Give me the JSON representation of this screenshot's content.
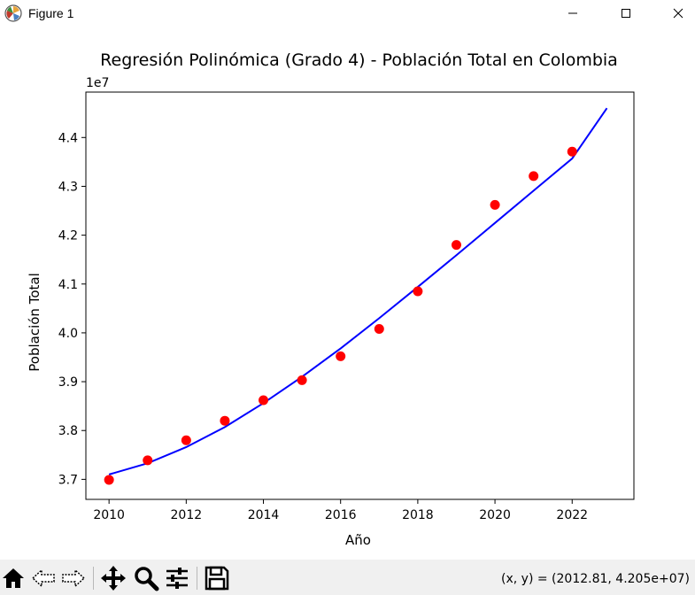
{
  "window": {
    "title": "Figure 1",
    "controls": [
      "minimize",
      "maximize",
      "close"
    ]
  },
  "toolbar": {
    "buttons": [
      {
        "name": "home",
        "icon": "home-icon"
      },
      {
        "name": "back",
        "icon": "back-arrow-icon"
      },
      {
        "name": "forward",
        "icon": "forward-arrow-icon"
      },
      {
        "name": "pan",
        "icon": "move-icon"
      },
      {
        "name": "zoom",
        "icon": "magnifier-icon"
      },
      {
        "name": "configure",
        "icon": "sliders-icon"
      },
      {
        "name": "save",
        "icon": "floppy-disk-icon"
      }
    ],
    "coordinates": "(x, y) = (2012.81, 4.205e+07)"
  },
  "chart_data": {
    "type": "scatter",
    "title": "Regresión Polinómica (Grado 4) - Población Total en Colombia",
    "xlabel": "Año",
    "ylabel": "Población Total",
    "offset_label": "1e7",
    "xlim": [
      2009.4,
      2023.6
    ],
    "ylim": [
      3.659,
      4.493
    ],
    "xticks": [
      2010,
      2012,
      2014,
      2016,
      2018,
      2020,
      2022
    ],
    "yticks": [
      3.7,
      3.8,
      3.9,
      4.0,
      4.1,
      4.2,
      4.3,
      4.4
    ],
    "ytick_labels": [
      "3.7",
      "3.8",
      "3.9",
      "4.0",
      "4.1",
      "4.2",
      "4.3",
      "4.4"
    ],
    "grid": false,
    "series": [
      {
        "kind": "points",
        "color": "#ff0000",
        "x": [
          2010,
          2011,
          2012,
          2013,
          2014,
          2015,
          2016,
          2017,
          2018,
          2019,
          2020,
          2021,
          2022
        ],
        "y": [
          3.699,
          3.739,
          3.78,
          3.82,
          3.862,
          3.903,
          3.952,
          4.008,
          4.085,
          4.18,
          4.262,
          4.321,
          4.371
        ]
      },
      {
        "kind": "line",
        "color": "#0000ff",
        "x": [
          2010,
          2011,
          2012,
          2013,
          2014,
          2015,
          2016,
          2017,
          2018,
          2019,
          2020,
          2021,
          2022,
          2022.9
        ],
        "y": [
          3.71,
          3.733,
          3.766,
          3.807,
          3.856,
          3.91,
          3.968,
          4.03,
          4.094,
          4.159,
          4.225,
          4.291,
          4.357,
          4.46
        ]
      }
    ]
  }
}
